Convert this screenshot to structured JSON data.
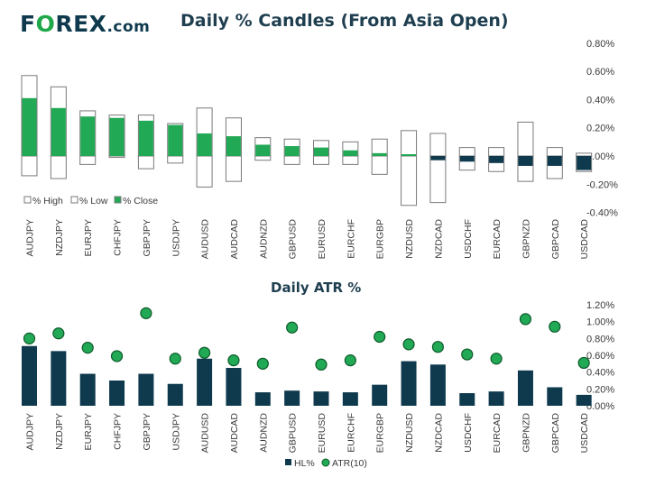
{
  "brand": {
    "name_part1": "F",
    "name_o": "O",
    "name_part2": "REX",
    "name_suffix": ".com"
  },
  "colors": {
    "navy": "#0f3a4e",
    "green": "#22a955",
    "text": "#3a3a3a",
    "outline": "#7a7a7a"
  },
  "chart_data": [
    {
      "type": "bar",
      "title": "Daily % Candles (From Asia Open)",
      "categories": [
        "AUDJPY",
        "NZDJPY",
        "EURJPY",
        "CHFJPY",
        "GBPJPY",
        "USDJPY",
        "AUDUSD",
        "AUDCAD",
        "AUDNZD",
        "GBPUSD",
        "EURUSD",
        "EURCHF",
        "EURGBP",
        "NZDUSD",
        "NZDCAD",
        "USDCHF",
        "EURCAD",
        "GBPNZD",
        "GBPCAD",
        "USDCAD"
      ],
      "series": [
        {
          "name": "% High",
          "values": [
            0.57,
            0.49,
            0.32,
            0.29,
            0.29,
            0.23,
            0.34,
            0.27,
            0.13,
            0.12,
            0.11,
            0.1,
            0.12,
            0.18,
            0.16,
            0.06,
            0.06,
            0.24,
            0.06,
            0.02
          ]
        },
        {
          "name": "% Low",
          "values": [
            -0.14,
            -0.16,
            -0.06,
            -0.01,
            -0.09,
            -0.05,
            -0.22,
            -0.18,
            -0.03,
            -0.06,
            -0.06,
            -0.06,
            -0.13,
            -0.35,
            -0.33,
            -0.1,
            -0.11,
            -0.18,
            -0.16,
            -0.11
          ]
        },
        {
          "name": "% Close",
          "values": [
            0.41,
            0.34,
            0.28,
            0.27,
            0.25,
            0.22,
            0.16,
            0.14,
            0.08,
            0.07,
            0.06,
            0.04,
            0.02,
            -0.0,
            -0.03,
            -0.04,
            -0.05,
            -0.07,
            -0.07,
            -0.1
          ]
        }
      ],
      "ylim": [
        -0.4,
        0.8
      ],
      "yticks": [
        -0.4,
        -0.2,
        0.0,
        0.2,
        0.4,
        0.6,
        0.8
      ],
      "ytick_labels": [
        "-0.40%",
        "-0.20%",
        "0.00%",
        "0.20%",
        "0.40%",
        "0.60%",
        "0.80%"
      ],
      "legend": [
        "% High",
        "% Low",
        "% Close"
      ],
      "legend_position": "bottom-left"
    },
    {
      "type": "bar",
      "title": "Daily ATR %",
      "categories": [
        "AUDJPY",
        "NZDJPY",
        "EURJPY",
        "CHFJPY",
        "GBPJPY",
        "USDJPY",
        "AUDUSD",
        "AUDCAD",
        "AUDNZD",
        "GBPUSD",
        "EURUSD",
        "EURCHF",
        "EURGBP",
        "NZDUSD",
        "NZDCAD",
        "USDCHF",
        "EURCAD",
        "GBPNZD",
        "GBPCAD",
        "USDCAD"
      ],
      "series": [
        {
          "name": "HL%",
          "values": [
            0.71,
            0.65,
            0.38,
            0.3,
            0.38,
            0.26,
            0.56,
            0.45,
            0.16,
            0.18,
            0.17,
            0.16,
            0.25,
            0.53,
            0.49,
            0.15,
            0.17,
            0.42,
            0.22,
            0.13
          ]
        },
        {
          "name": "ATR(10)",
          "values": [
            0.8,
            0.86,
            0.69,
            0.59,
            1.1,
            0.56,
            0.63,
            0.54,
            0.5,
            0.93,
            0.49,
            0.54,
            0.82,
            0.73,
            0.7,
            0.61,
            0.56,
            1.03,
            0.94,
            0.51
          ]
        }
      ],
      "ylim": [
        0,
        1.2
      ],
      "yticks": [
        0,
        0.2,
        0.4,
        0.6,
        0.8,
        1.0,
        1.2
      ],
      "ytick_labels": [
        "0.00%",
        "0.20%",
        "0.40%",
        "0.60%",
        "0.80%",
        "1.00%",
        "1.20%"
      ],
      "legend": [
        "HL%",
        "ATR(10)"
      ],
      "legend_position": "bottom-center"
    }
  ]
}
